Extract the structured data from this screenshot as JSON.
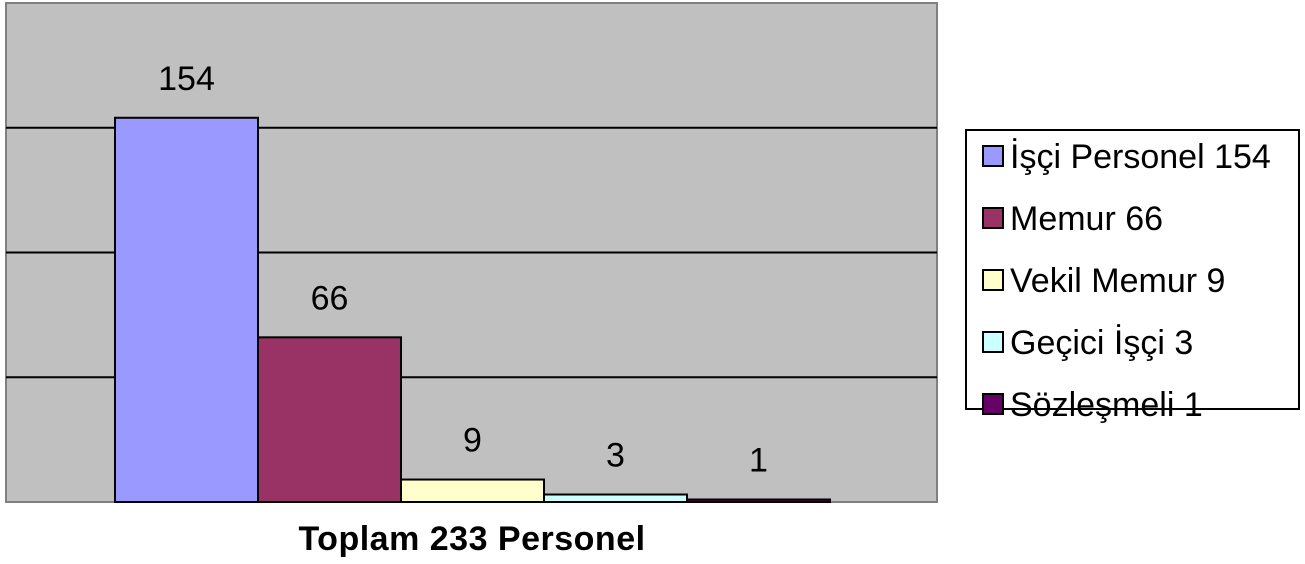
{
  "chart_data": {
    "type": "bar",
    "categories": [
      "İşçi Personel",
      "Memur",
      "Vekil Memur",
      "Geçici İşçi",
      "Sözleşmeli"
    ],
    "values": [
      154,
      66,
      9,
      3,
      1
    ],
    "colors": [
      "#9999ff",
      "#993366",
      "#ffffcc",
      "#ccffff",
      "#660066"
    ],
    "legend": [
      "İşçi Personel 154",
      "Memur 66",
      "Vekil Memur 9",
      "Geçici İşçi 3",
      "Sözleşmeli 1"
    ],
    "title": "",
    "xlabel": "Toplam 233 Personel",
    "ylabel": "",
    "ylim": [
      0,
      200
    ],
    "grid": true,
    "legend_position": "right",
    "plot_background": "#c0c0c0"
  }
}
